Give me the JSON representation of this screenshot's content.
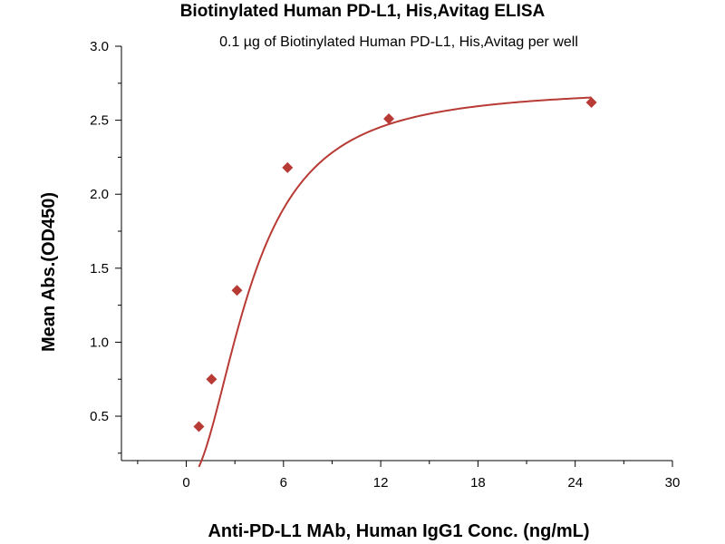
{
  "chart_data": {
    "type": "scatter",
    "title": "Biotinylated Human PD-L1, His,Avitag ELISA",
    "subtitle": "0.1 µg of Biotinylated Human PD-L1, His,Avitag per well",
    "xlabel": "Anti-PD-L1 MAb, Human IgG1 Conc. (ng/mL)",
    "ylabel": "Mean Abs.(OD450)",
    "xlim": [
      -4,
      30
    ],
    "ylim": [
      0.2,
      3.0
    ],
    "x_ticks": [
      0,
      6,
      12,
      18,
      24,
      30
    ],
    "y_ticks": [
      0.5,
      1.0,
      1.5,
      2.0,
      2.5,
      3.0
    ],
    "x_tick_labels": [
      "0",
      "6",
      "12",
      "18",
      "24",
      "30"
    ],
    "y_tick_labels": [
      "0.5",
      "1.0",
      "1.5",
      "2.0",
      "2.5",
      "3.0"
    ],
    "grid": false,
    "series": [
      {
        "points": [
          {
            "x": 0.78,
            "y": 0.43
          },
          {
            "x": 1.56,
            "y": 0.75
          },
          {
            "x": 3.13,
            "y": 1.35
          },
          {
            "x": 6.25,
            "y": 2.18
          },
          {
            "x": 12.5,
            "y": 2.51
          },
          {
            "x": 25.0,
            "y": 2.62
          }
        ],
        "fit": "4PL",
        "color": "#b83a34"
      }
    ]
  }
}
